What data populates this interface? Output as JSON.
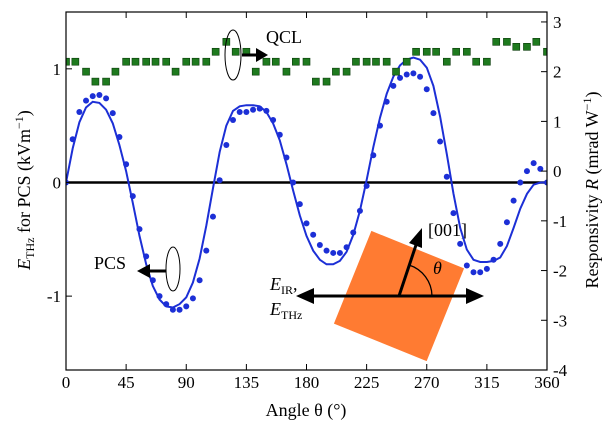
{
  "chart_data": {
    "type": "scatter",
    "xlabel": "Angle θ (°)",
    "x_ticks": [
      0,
      45,
      90,
      135,
      180,
      225,
      270,
      315,
      360
    ],
    "xlim": [
      0,
      360
    ],
    "left_axis": {
      "label_parts": [
        "E",
        "THz",
        " for PCS (kVm",
        "−1",
        ")"
      ],
      "ylim": [
        -1.65,
        1.5
      ],
      "ticks": [
        -1,
        0,
        1
      ]
    },
    "right_axis": {
      "label_parts": [
        "Responsivity ",
        "R",
        " (mrad W",
        "−1",
        ")"
      ],
      "ylim": [
        -4,
        3.2
      ],
      "ticks": [
        -4,
        -3,
        -2,
        -1,
        0,
        1,
        2,
        3
      ]
    },
    "series": [
      {
        "name": "PCS data",
        "axis": "left",
        "style": "dots",
        "color": "#1c2fd6",
        "x": [
          0,
          5,
          10,
          15,
          20,
          25,
          30,
          35,
          40,
          45,
          50,
          55,
          60,
          65,
          70,
          75,
          80,
          85,
          90,
          95,
          100,
          105,
          110,
          115,
          120,
          125,
          130,
          135,
          140,
          145,
          150,
          155,
          160,
          165,
          170,
          175,
          180,
          185,
          190,
          195,
          200,
          205,
          210,
          215,
          220,
          225,
          230,
          235,
          240,
          245,
          250,
          255,
          260,
          265,
          270,
          275,
          280,
          285,
          290,
          295,
          300,
          305,
          310,
          315,
          320,
          325,
          330,
          335,
          340,
          345,
          350,
          355,
          360
        ],
        "y": [
          0.0,
          0.38,
          0.62,
          0.72,
          0.76,
          0.77,
          0.74,
          0.61,
          0.4,
          0.16,
          -0.12,
          -0.41,
          -0.65,
          -0.86,
          -1.0,
          -1.07,
          -1.12,
          -1.12,
          -1.09,
          -1.02,
          -0.86,
          -0.6,
          -0.3,
          0.02,
          0.33,
          0.55,
          0.62,
          0.62,
          0.64,
          0.65,
          0.63,
          0.55,
          0.42,
          0.22,
          0.0,
          -0.19,
          -0.36,
          -0.46,
          -0.55,
          -0.6,
          -0.62,
          -0.62,
          -0.57,
          -0.44,
          -0.25,
          -0.03,
          0.24,
          0.5,
          0.71,
          0.85,
          0.92,
          0.95,
          0.96,
          0.93,
          0.82,
          0.61,
          0.36,
          0.05,
          -0.27,
          -0.54,
          -0.73,
          -0.79,
          -0.79,
          -0.76,
          -0.68,
          -0.54,
          -0.35,
          -0.16,
          0.0,
          0.1,
          0.17,
          0.12,
          0.0
        ]
      },
      {
        "name": "PCS fit",
        "axis": "left",
        "style": "line",
        "color": "#1c2fd6",
        "x": [
          0,
          5,
          10,
          15,
          20,
          25,
          30,
          35,
          40,
          45,
          50,
          55,
          60,
          65,
          70,
          75,
          80,
          85,
          90,
          95,
          100,
          105,
          110,
          115,
          120,
          125,
          130,
          135,
          140,
          145,
          150,
          155,
          160,
          165,
          170,
          175,
          180,
          185,
          190,
          195,
          200,
          205,
          210,
          215,
          220,
          225,
          230,
          235,
          240,
          245,
          250,
          255,
          260,
          265,
          270,
          275,
          280,
          285,
          290,
          295,
          300,
          305,
          310,
          315,
          320,
          325,
          330,
          335,
          340,
          345,
          350,
          355,
          360
        ],
        "y": [
          0.0,
          0.3,
          0.53,
          0.66,
          0.71,
          0.7,
          0.64,
          0.52,
          0.33,
          0.1,
          -0.18,
          -0.47,
          -0.72,
          -0.91,
          -1.03,
          -1.09,
          -1.1,
          -1.07,
          -1.01,
          -0.88,
          -0.67,
          -0.38,
          -0.05,
          0.27,
          0.5,
          0.63,
          0.67,
          0.68,
          0.68,
          0.67,
          0.62,
          0.52,
          0.37,
          0.16,
          -0.07,
          -0.29,
          -0.47,
          -0.6,
          -0.68,
          -0.72,
          -0.72,
          -0.69,
          -0.61,
          -0.46,
          -0.25,
          0.02,
          0.31,
          0.57,
          0.78,
          0.93,
          1.03,
          1.08,
          1.1,
          1.08,
          1.01,
          0.85,
          0.58,
          0.25,
          -0.1,
          -0.4,
          -0.59,
          -0.68,
          -0.7,
          -0.7,
          -0.69,
          -0.66,
          -0.56,
          -0.4,
          -0.23,
          -0.1,
          -0.02,
          0.0,
          0.0
        ]
      },
      {
        "name": "QCL",
        "axis": "right",
        "style": "squares",
        "color": "#1e7a1e",
        "x": [
          0,
          7,
          15,
          22,
          30,
          37,
          45,
          52,
          60,
          67,
          75,
          82,
          90,
          97,
          105,
          112,
          120,
          127,
          135,
          142,
          150,
          157,
          165,
          172,
          180,
          187,
          195,
          202,
          210,
          217,
          225,
          232,
          240,
          247,
          255,
          262,
          270,
          277,
          285,
          292,
          300,
          307,
          315,
          322,
          330,
          337,
          345,
          352,
          360
        ],
        "y": [
          2.2,
          2.2,
          2.0,
          1.8,
          1.8,
          2.0,
          2.2,
          2.2,
          2.2,
          2.2,
          2.2,
          2.0,
          2.2,
          2.2,
          2.2,
          2.4,
          2.6,
          2.4,
          2.4,
          2.0,
          2.2,
          2.2,
          2.0,
          2.2,
          2.2,
          1.8,
          1.8,
          2.0,
          2.0,
          2.2,
          2.2,
          2.2,
          2.2,
          2.0,
          2.2,
          2.4,
          2.4,
          2.4,
          2.2,
          2.4,
          2.4,
          2.2,
          2.2,
          2.6,
          2.6,
          2.5,
          2.5,
          2.6,
          2.4
        ]
      }
    ],
    "zero_line": {
      "axis": "left",
      "value": 0,
      "color": "#000000"
    },
    "annotations": {
      "qcl_label": "QCL",
      "pcs_label": "PCS",
      "field_label_1": [
        "E",
        "IR",
        ","
      ],
      "field_label_2": [
        "E",
        "THz"
      ],
      "crystal_axis_label": "[001]",
      "theta_label": "θ",
      "crystal_color": "#ff7b32"
    }
  }
}
